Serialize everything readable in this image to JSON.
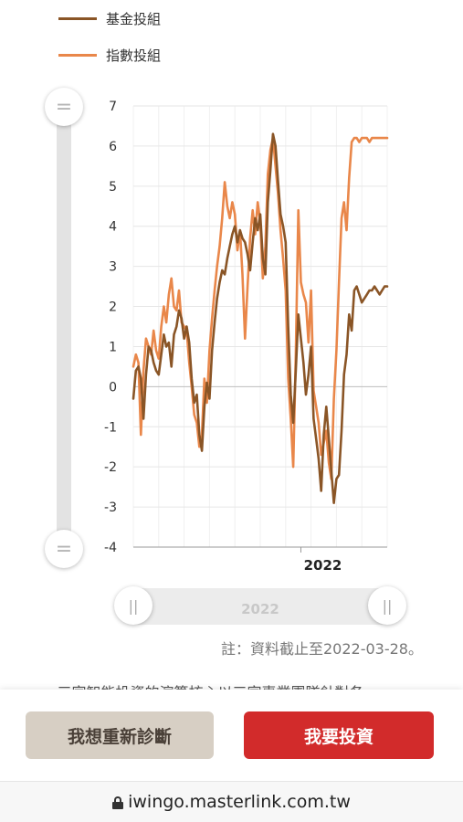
{
  "legend": {
    "fund": {
      "label": "基金投組",
      "color": "#8a5526"
    },
    "index": {
      "label": "指數投組",
      "color": "#e9874a"
    }
  },
  "slider": {
    "vertical_top_icon": "=",
    "vertical_bottom_icon": "=",
    "horizontal_left_icon": "||",
    "horizontal_right_icon": "||",
    "horizontal_label": "2022"
  },
  "chart_data": {
    "type": "line",
    "ylim": [
      -4,
      7
    ],
    "yticks": [
      7,
      6,
      5,
      4,
      3,
      2,
      1,
      0,
      -1,
      -2,
      -3,
      -4
    ],
    "xlim": [
      0,
      100
    ],
    "xtick_label": "2022",
    "xtick_position": 66,
    "grid": true,
    "series": [
      {
        "name": "基金投組",
        "color": "#8a5526",
        "x": [
          0,
          1,
          2,
          3,
          4,
          5,
          6,
          7,
          8,
          9,
          10,
          11,
          12,
          13,
          14,
          15,
          16,
          17,
          18,
          19,
          20,
          21,
          22,
          23,
          24,
          25,
          26,
          27,
          28,
          29,
          30,
          31,
          32,
          33,
          34,
          35,
          36,
          37,
          38,
          39,
          40,
          41,
          42,
          43,
          44,
          45,
          46,
          47,
          48,
          49,
          50,
          51,
          52,
          53,
          54,
          55,
          56,
          57,
          58,
          59,
          60,
          61,
          62,
          63,
          64,
          65,
          66,
          67,
          68,
          69,
          70,
          71,
          72,
          73,
          74,
          75,
          76,
          77,
          78,
          79,
          80,
          81,
          82,
          83,
          84,
          85,
          86,
          87,
          88,
          89,
          90,
          91,
          92,
          93,
          94,
          95,
          96,
          97,
          98,
          99,
          100
        ],
        "values": [
          -0.3,
          0.4,
          0.5,
          0.2,
          -0.8,
          0.3,
          1.0,
          0.9,
          0.6,
          0.4,
          0.3,
          0.8,
          1.3,
          1.0,
          1.1,
          0.5,
          1.3,
          1.5,
          1.9,
          1.7,
          1.2,
          1.5,
          1.1,
          0.2,
          -0.4,
          -0.2,
          -1.2,
          -1.6,
          -0.5,
          0.1,
          -0.3,
          0.9,
          1.6,
          2.2,
          2.6,
          2.9,
          2.8,
          3.2,
          3.5,
          3.8,
          4.0,
          3.6,
          3.9,
          3.7,
          3.6,
          3.3,
          2.9,
          3.6,
          4.2,
          3.9,
          4.3,
          3.2,
          2.8,
          4.6,
          5.4,
          6.3,
          6.0,
          5.1,
          4.3,
          4.0,
          3.6,
          1.5,
          -0.2,
          -0.9,
          0.4,
          1.8,
          1.2,
          0.6,
          -0.2,
          0.3,
          1.0,
          -0.8,
          -1.3,
          -1.8,
          -2.6,
          -1.2,
          -0.5,
          -1.3,
          -2.1,
          -2.9,
          -2.3,
          -2.2,
          -1.1,
          0.3,
          0.8,
          1.8,
          1.4,
          2.4,
          2.5,
          2.3,
          2.1,
          2.2,
          2.3,
          2.4,
          2.4,
          2.5,
          2.4,
          2.3,
          2.4,
          2.5,
          2.5
        ]
      },
      {
        "name": "指數投組",
        "color": "#e9874a",
        "x": [
          0,
          1,
          2,
          3,
          4,
          5,
          6,
          7,
          8,
          9,
          10,
          11,
          12,
          13,
          14,
          15,
          16,
          17,
          18,
          19,
          20,
          21,
          22,
          23,
          24,
          25,
          26,
          27,
          28,
          29,
          30,
          31,
          32,
          33,
          34,
          35,
          36,
          37,
          38,
          39,
          40,
          41,
          42,
          43,
          44,
          45,
          46,
          47,
          48,
          49,
          50,
          51,
          52,
          53,
          54,
          55,
          56,
          57,
          58,
          59,
          60,
          61,
          62,
          63,
          64,
          65,
          66,
          67,
          68,
          69,
          70,
          71,
          72,
          73,
          74,
          75,
          76,
          77,
          78,
          79,
          80,
          81,
          82,
          83,
          84,
          85,
          86,
          87,
          88,
          89,
          90,
          91,
          92,
          93,
          94,
          95,
          96,
          97,
          98,
          99,
          100
        ],
        "values": [
          0.5,
          0.8,
          0.6,
          -1.2,
          0.4,
          1.2,
          1.0,
          0.8,
          1.4,
          0.9,
          0.7,
          1.5,
          2.0,
          1.6,
          2.3,
          2.7,
          2.0,
          1.9,
          2.4,
          1.6,
          1.5,
          1.4,
          0.6,
          0.0,
          -0.7,
          -0.9,
          -1.5,
          -1.2,
          0.2,
          -0.4,
          0.9,
          1.7,
          2.4,
          3.0,
          3.5,
          4.2,
          5.1,
          4.5,
          4.2,
          4.6,
          4.3,
          3.4,
          3.9,
          2.8,
          1.2,
          2.5,
          3.7,
          4.4,
          3.8,
          4.6,
          4.1,
          2.7,
          3.5,
          5.3,
          5.9,
          6.2,
          5.5,
          4.8,
          3.9,
          3.2,
          2.4,
          0.2,
          -0.8,
          -2.0,
          0.8,
          4.4,
          2.6,
          2.3,
          2.1,
          1.1,
          2.4,
          -0.1,
          -0.5,
          -0.9,
          -1.7,
          -1.4,
          -1.1,
          -1.9,
          -2.3,
          -0.3,
          0.9,
          2.6,
          4.2,
          4.6,
          3.9,
          5.2,
          6.1,
          6.2,
          6.2,
          6.1,
          6.2,
          6.2,
          6.2,
          6.1,
          6.2,
          6.2,
          6.2,
          6.2,
          6.2,
          6.2,
          6.2
        ]
      }
    ]
  },
  "note": "註：資料截止至2022-03-28。",
  "partial_text": "• 三家智能投資的演算核心以三家專業團隊針對各",
  "buttons": {
    "rediagnose": "我想重新診斷",
    "invest": "我要投資"
  },
  "browser": {
    "url": "iwingo.masterlink.com.tw",
    "lock_icon": "lock-icon"
  }
}
